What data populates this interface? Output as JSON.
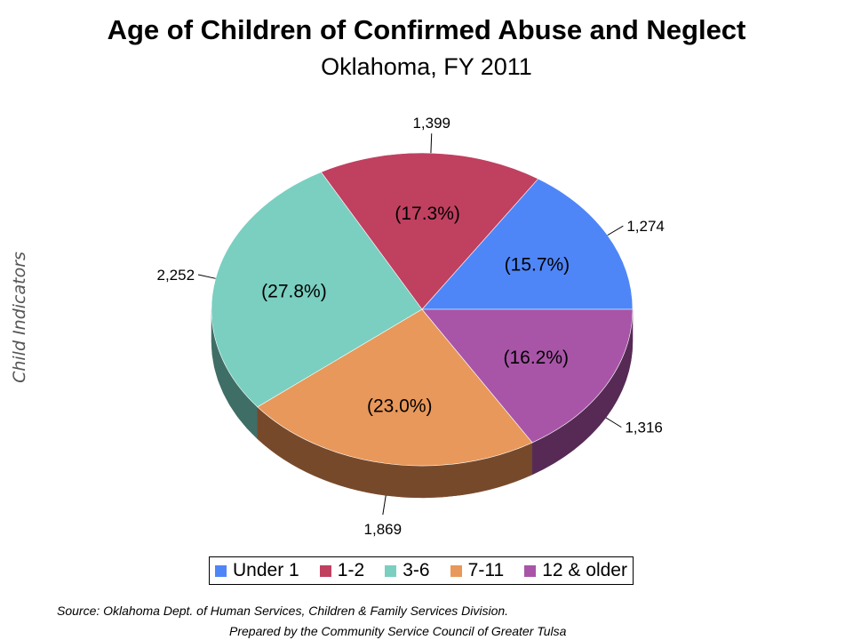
{
  "side_label": "Child Indicators",
  "source": "Source:  Oklahoma Dept. of Human Services, Children & Family Services Division.",
  "prepared_by": "Prepared by the Community Service Council of Greater Tulsa",
  "chart_data": {
    "type": "pie",
    "title": "Age of Children of Confirmed Abuse and Neglect",
    "subtitle": "Oklahoma, FY 2011",
    "legend_position": "bottom",
    "three_d": true,
    "slices": [
      {
        "label": "Under 1",
        "value": 1274,
        "value_label": "1,274",
        "percent_label": "(15.7%)",
        "color": "#4f86f7",
        "side_color": "#2e4f93"
      },
      {
        "label": "1-2",
        "value": 1399,
        "value_label": "1,399",
        "percent_label": "(17.3%)",
        "color": "#c04060",
        "side_color": "#702538"
      },
      {
        "label": "3-6",
        "value": 2252,
        "value_label": "2,252",
        "percent_label": "(27.8%)",
        "color": "#7acfc0",
        "side_color": "#3f6e66"
      },
      {
        "label": "7-11",
        "value": 1869,
        "value_label": "1,869",
        "percent_label": "(23.0%)",
        "color": "#e8985a",
        "side_color": "#77492b"
      },
      {
        "label": "12 & older",
        "value": 1316,
        "value_label": "1,316",
        "percent_label": "(16.2%)",
        "color": "#a855a8",
        "side_color": "#562a55"
      }
    ]
  }
}
